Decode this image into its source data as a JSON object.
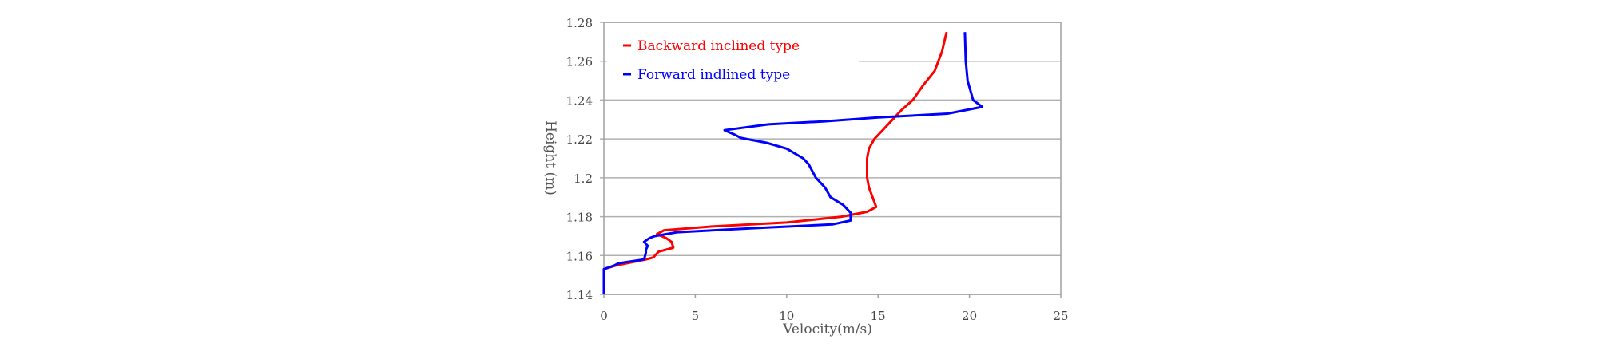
{
  "chart_data": {
    "type": "line",
    "title": "",
    "xlabel": "Velocity(m/s)",
    "ylabel": "Height (m)",
    "xlim": [
      0,
      25
    ],
    "ylim": [
      1.14,
      1.28
    ],
    "x_ticks": [
      0,
      5,
      10,
      15,
      20,
      25
    ],
    "y_ticks": [
      1.14,
      1.16,
      1.18,
      1.2,
      1.22,
      1.24,
      1.26,
      1.28
    ],
    "x_tick_labels": [
      "0",
      "5",
      "10",
      "15",
      "20",
      "25"
    ],
    "y_tick_labels": [
      "1.14",
      "1.16",
      "1.18",
      "1.2",
      "1.22",
      "1.24",
      "1.26",
      "1.28"
    ],
    "grid": "horizontal",
    "legend_position": "top-left",
    "series": [
      {
        "name": "Backward inclined type",
        "color": "#ff0000",
        "points": [
          [
            18.75,
            1.275
          ],
          [
            18.5,
            1.265
          ],
          [
            18.1,
            1.255
          ],
          [
            17.5,
            1.248
          ],
          [
            16.9,
            1.24
          ],
          [
            16.3,
            1.235
          ],
          [
            15.8,
            1.23
          ],
          [
            15.3,
            1.225
          ],
          [
            14.8,
            1.22
          ],
          [
            14.5,
            1.215
          ],
          [
            14.4,
            1.21
          ],
          [
            14.4,
            1.205
          ],
          [
            14.4,
            1.2
          ],
          [
            14.5,
            1.195
          ],
          [
            14.7,
            1.19
          ],
          [
            14.9,
            1.185
          ],
          [
            14.4,
            1.1825
          ],
          [
            13.0,
            1.18
          ],
          [
            10.0,
            1.177
          ],
          [
            6.0,
            1.175
          ],
          [
            3.3,
            1.173
          ],
          [
            2.9,
            1.171
          ],
          [
            3.4,
            1.169
          ],
          [
            3.7,
            1.167
          ],
          [
            3.8,
            1.164
          ],
          [
            3.0,
            1.162
          ],
          [
            2.7,
            1.159
          ],
          [
            2.3,
            1.158
          ],
          [
            0.7,
            1.155
          ],
          [
            0,
            1.153
          ],
          [
            0,
            1.14
          ]
        ]
      },
      {
        "name": "Forward indlined type",
        "color": "#0000ff",
        "points": [
          [
            19.75,
            1.275
          ],
          [
            19.8,
            1.26
          ],
          [
            19.9,
            1.25
          ],
          [
            20.2,
            1.24
          ],
          [
            20.7,
            1.2365
          ],
          [
            18.8,
            1.233
          ],
          [
            15.0,
            1.231
          ],
          [
            12.0,
            1.229
          ],
          [
            9.0,
            1.2275
          ],
          [
            6.6,
            1.2245
          ],
          [
            7.2,
            1.222
          ],
          [
            7.5,
            1.2205
          ],
          [
            8.9,
            1.218
          ],
          [
            10.0,
            1.215
          ],
          [
            10.9,
            1.21
          ],
          [
            11.2,
            1.207
          ],
          [
            11.6,
            1.2
          ],
          [
            12.1,
            1.195
          ],
          [
            12.4,
            1.19
          ],
          [
            13.1,
            1.186
          ],
          [
            13.5,
            1.182
          ],
          [
            13.5,
            1.178
          ],
          [
            12.5,
            1.176
          ],
          [
            8.0,
            1.174
          ],
          [
            4.0,
            1.172
          ],
          [
            2.8,
            1.17
          ],
          [
            2.5,
            1.169
          ],
          [
            2.2,
            1.167
          ],
          [
            2.4,
            1.165
          ],
          [
            2.3,
            1.163
          ],
          [
            2.3,
            1.1615
          ],
          [
            2.2,
            1.158
          ],
          [
            0.8,
            1.156
          ],
          [
            0.6,
            1.155
          ],
          [
            0,
            1.153
          ],
          [
            0,
            1.14
          ]
        ]
      }
    ]
  }
}
